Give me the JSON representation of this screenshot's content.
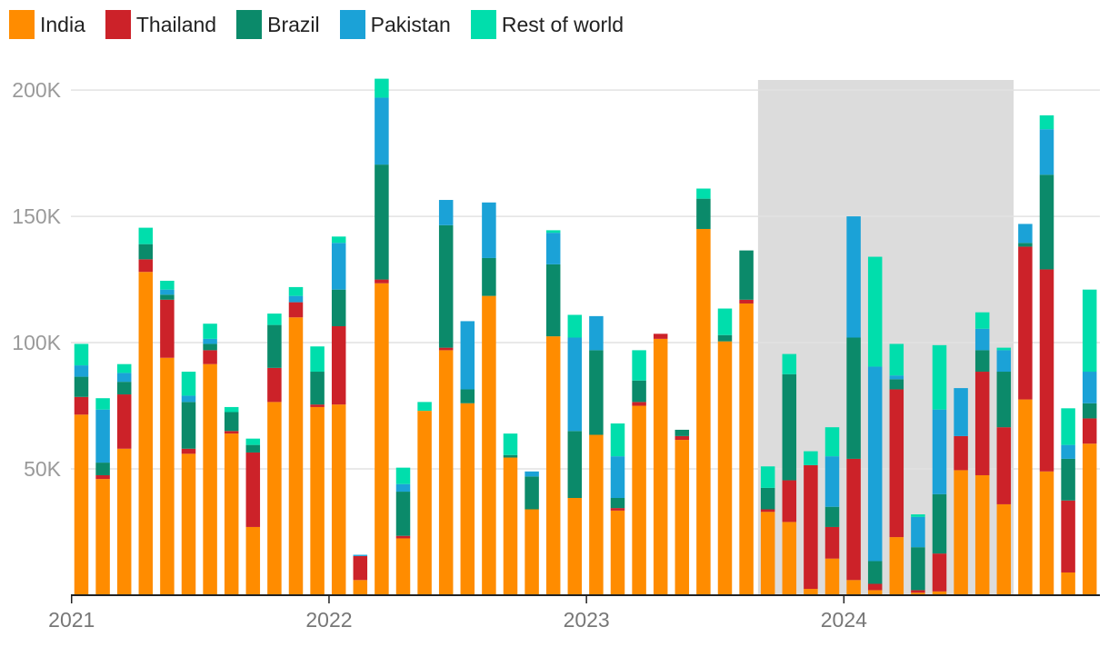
{
  "chart_data": {
    "type": "bar",
    "stacked": true,
    "grid": true,
    "legend_position": "top-left",
    "ylim": [
      0,
      204000
    ],
    "y_ticks": [
      {
        "value": 50000,
        "label": "50K"
      },
      {
        "value": 100000,
        "label": "100K"
      },
      {
        "value": 150000,
        "label": "150K"
      },
      {
        "value": 200000,
        "label": "200K"
      }
    ],
    "x_ticks": [
      {
        "index": 0,
        "label": "2021"
      },
      {
        "index": 12,
        "label": "2022"
      },
      {
        "index": 24,
        "label": "2023"
      },
      {
        "index": 36,
        "label": "2024"
      }
    ],
    "highlight": {
      "start_index": 32,
      "end_index": 43,
      "color": "#dcdcdc"
    },
    "categories": [
      "Jan 2021",
      "Feb 2021",
      "Mar 2021",
      "Apr 2021",
      "May 2021",
      "Jun 2021",
      "Jul 2021",
      "Aug 2021",
      "Sep 2021",
      "Oct 2021",
      "Nov 2021",
      "Dec 2021",
      "Jan 2022",
      "Feb 2022",
      "Mar 2022",
      "Apr 2022",
      "May 2022",
      "Jun 2022",
      "Jul 2022",
      "Aug 2022",
      "Sep 2022",
      "Oct 2022",
      "Nov 2022",
      "Dec 2022",
      "Jan 2023",
      "Feb 2023",
      "Mar 2023",
      "Apr 2023",
      "May 2023",
      "Jun 2023",
      "Jul 2023",
      "Aug 2023",
      "Sep 2023",
      "Oct 2023",
      "Nov 2023",
      "Dec 2023",
      "Jan 2024",
      "Feb 2024",
      "Mar 2024",
      "Apr 2024",
      "May 2024",
      "Jun 2024",
      "Jul 2024",
      "Aug 2024",
      "Sep 2024",
      "Oct 2024",
      "Nov 2024",
      "Dec 2024"
    ],
    "series": [
      {
        "name": "India",
        "color": "#ff8c00",
        "values": [
          71500,
          46000,
          58000,
          128000,
          94000,
          56000,
          91500,
          64000,
          27000,
          76500,
          110000,
          74500,
          75500,
          6000,
          123500,
          22500,
          73000,
          97000,
          76000,
          118500,
          54500,
          34000,
          102500,
          38500,
          63500,
          33500,
          75000,
          101500,
          61500,
          145000,
          100500,
          115500,
          33000,
          29000,
          2500,
          14500,
          6000,
          2000,
          23000,
          1000,
          1500,
          49500,
          47500,
          36000,
          77500,
          49000,
          9000,
          60000
        ]
      },
      {
        "name": "Thailand",
        "color": "#cc2229",
        "values": [
          7000,
          1500,
          21500,
          5000,
          23000,
          2000,
          5500,
          1000,
          29500,
          13500,
          6000,
          1000,
          31000,
          9500,
          1500,
          1000,
          0,
          1000,
          0,
          0,
          0,
          0,
          0,
          0,
          0,
          1000,
          1500,
          2000,
          1500,
          0,
          0,
          1500,
          1000,
          16500,
          49000,
          12500,
          48000,
          2500,
          58500,
          1000,
          15000,
          13500,
          41000,
          30500,
          60500,
          80000,
          28500,
          10000
        ]
      },
      {
        "name": "Brazil",
        "color": "#0b8a6a",
        "values": [
          8000,
          5000,
          5000,
          6000,
          2000,
          18500,
          2500,
          7500,
          3000,
          17000,
          0,
          13000,
          14500,
          0,
          45500,
          17500,
          0,
          48500,
          5500,
          15000,
          1000,
          13000,
          28500,
          26500,
          33500,
          4000,
          8500,
          0,
          2500,
          12000,
          2500,
          19500,
          8500,
          42000,
          0,
          8000,
          48000,
          9000,
          4000,
          17000,
          23500,
          0,
          8500,
          22000,
          1500,
          37500,
          16500,
          6000
        ]
      },
      {
        "name": "Pakistan",
        "color": "#1ba2d7",
        "values": [
          4500,
          21000,
          3500,
          0,
          2000,
          2500,
          2000,
          0,
          0,
          0,
          2500,
          0,
          18500,
          500,
          26500,
          3000,
          0,
          10000,
          27000,
          22000,
          0,
          2000,
          12500,
          37000,
          13500,
          16500,
          0,
          0,
          0,
          0,
          0,
          0,
          0,
          0,
          0,
          20000,
          48000,
          77000,
          1500,
          12000,
          33500,
          19000,
          8500,
          8500,
          7500,
          18000,
          5500,
          12500
        ]
      },
      {
        "name": "Rest of world",
        "color": "#00deac",
        "values": [
          8500,
          4500,
          3500,
          6500,
          3500,
          9500,
          6000,
          2000,
          2500,
          4500,
          3500,
          10000,
          2500,
          0,
          7500,
          6500,
          3500,
          0,
          0,
          0,
          8500,
          0,
          1000,
          9000,
          0,
          13000,
          12000,
          0,
          0,
          4000,
          10500,
          0,
          8500,
          8000,
          5500,
          11500,
          0,
          43500,
          12500,
          1000,
          25500,
          0,
          6500,
          1000,
          0,
          5500,
          14500,
          32500
        ]
      }
    ]
  }
}
